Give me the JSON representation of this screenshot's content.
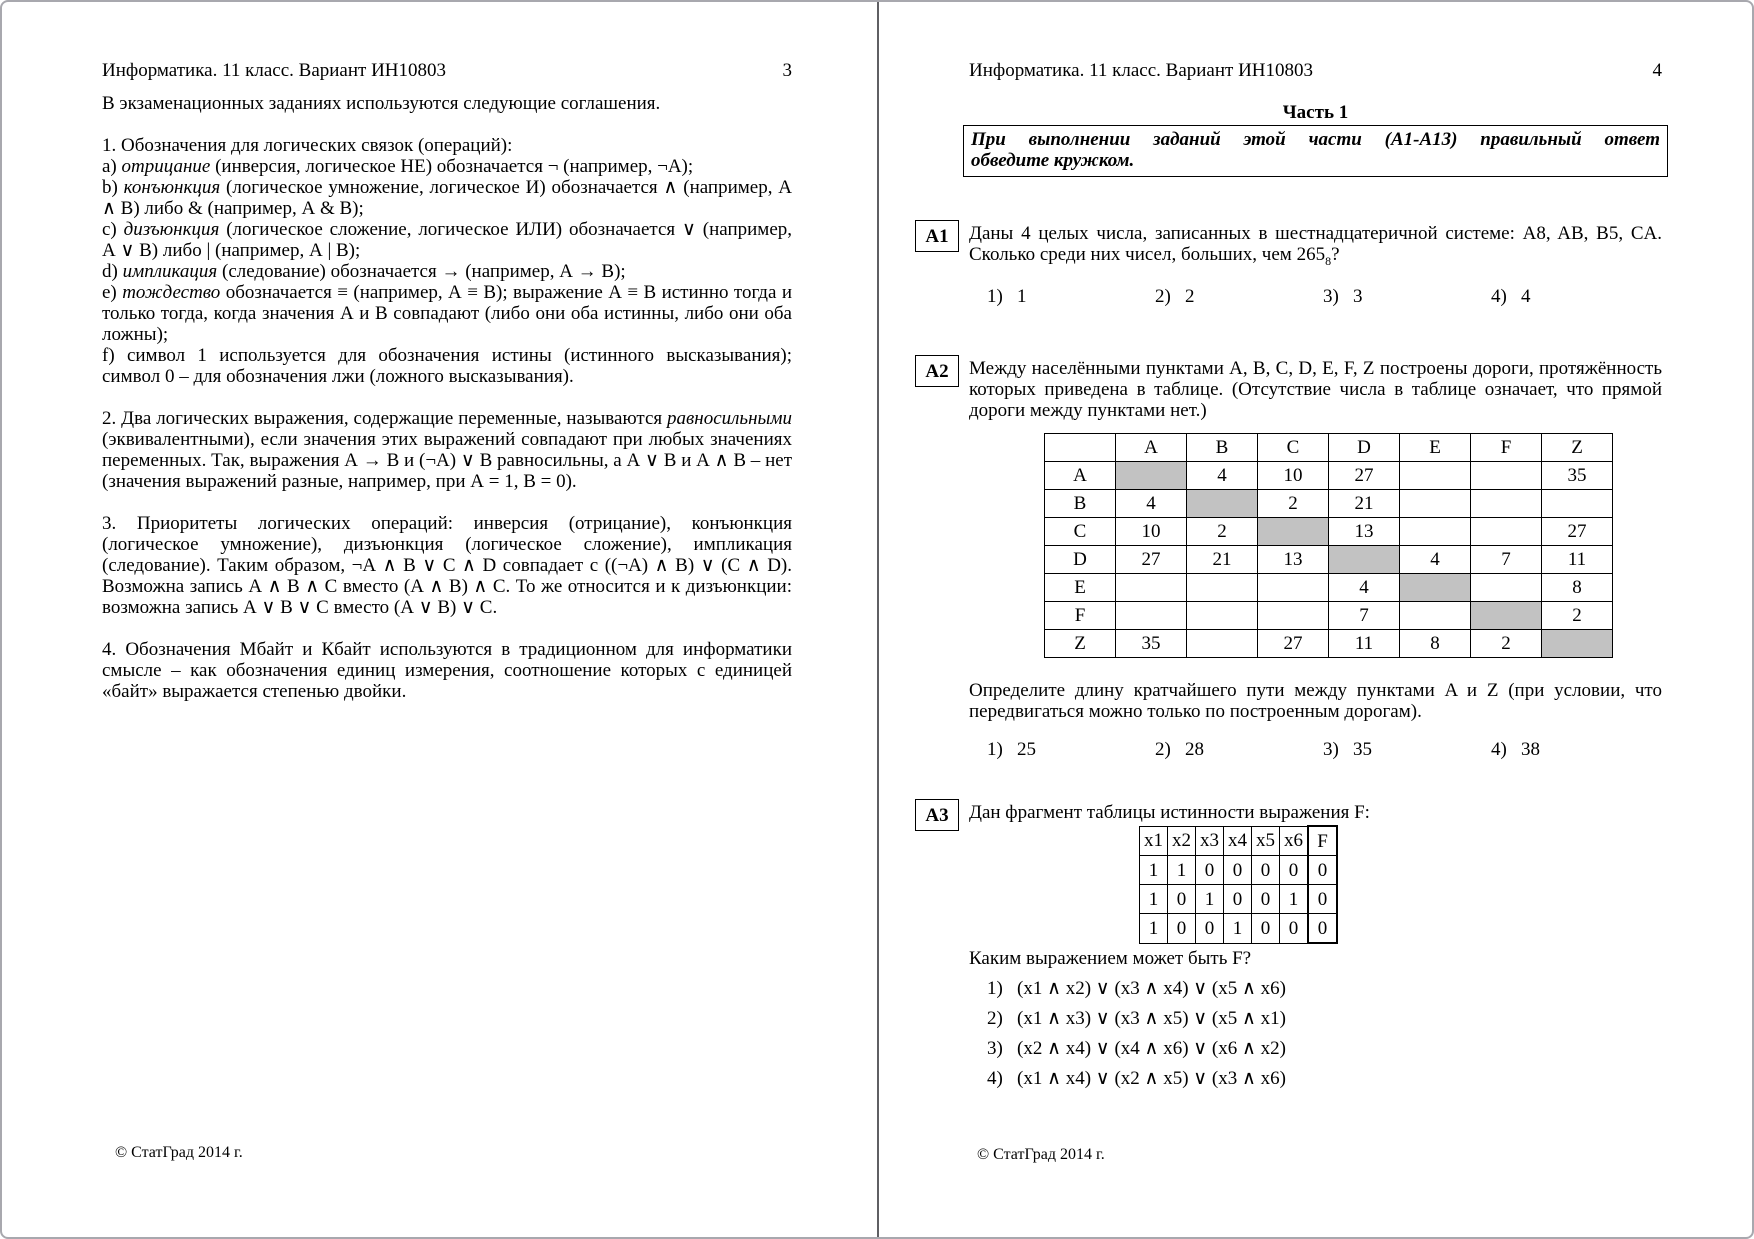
{
  "colors": {
    "shade_gray": "#c2c2c2",
    "divider_gray": "#5f5f63",
    "frame_gray": "#a8a8ae"
  },
  "page_left": {
    "header": "Информатика. 11 класс. Вариант ИН10803",
    "page_number": "3",
    "intro": "В экзаменационных заданиях используются следующие соглашения.",
    "section1_title": "1. Обозначения для логических связок (операций):",
    "conventions": [
      {
        "m": "а) ",
        "term": "отрицание",
        "rest": " (инверсия, логическое НЕ) обозначается ¬ (например, ¬А);"
      },
      {
        "m": "b) ",
        "term": "конъюнкция",
        "rest": " (логическое умножение, логическое И) обозначается ∧ (например, А ∧ В) либо & (например, А & В);"
      },
      {
        "m": "c) ",
        "term": "дизъюнкция",
        "rest": " (логическое сложение, логическое ИЛИ) обозначается ∨ (например, А ∨ В) либо | (например, А | В);"
      },
      {
        "m": "d) ",
        "term": "импликация",
        "rest": " (следование) обозначается → (например, А → В);"
      },
      {
        "m": "е) ",
        "term": "тождество",
        "rest": " обозначается ≡ (например, А ≡ В); выражение А ≡ В истинно тогда и только тогда, когда значения А и В совпадают (либо они оба истинны, либо они оба ложны);"
      },
      {
        "m": "f) ",
        "term": "",
        "rest": "символ 1 используется для обозначения истины (истинного высказывания); символ 0 – для обозначения лжи (ложного высказывания)."
      }
    ],
    "para2": {
      "before": "2. Два логических выражения, содержащие переменные, называются ",
      "italic": "равносильными",
      "after": " (эквивалентными), если значения этих выражений совпадают при любых значениях переменных. Так, выражения А → В и (¬А) ∨ В равносильны, а А ∨ В и А ∧ В – нет (значения выражений разные, например, при А = 1, В = 0)."
    },
    "para3": "3. Приоритеты логических операций: инверсия (отрицание), конъюнкция (логическое умножение), дизъюнкция (логическое сложение), импликация (следование). Таким образом, ¬А ∧ В ∨ С ∧ D совпадает с ((¬А) ∧ В) ∨ (С ∧ D). Возможна запись А ∧ В ∧ С вместо (А ∧ В) ∧ С. То же относится и к дизъюнкции: возможна запись А ∨ В ∨ С вместо (А ∨ В) ∨ С.",
    "para4": "4. Обозначения Мбайт и Кбайт используются в традиционном для информатики смысле – как обозначения единиц измерения, соотношение которых с единицей «байт» выражается степенью двойки.",
    "footer": "© СтатГрад 2014 г."
  },
  "page_right": {
    "header": "Информатика. 11 класс. Вариант ИН10803",
    "page_number": "4",
    "part_title": "Часть 1",
    "instruction_line1": "При выполнении заданий этой части (А1-А13) правильный ответ",
    "instruction_line2": "обведите кружком.",
    "a1": {
      "label": "А1",
      "text_before": "Даны 4 целых числа, записанных в шестнадцатеричной системе: A8, AB, B5, CA. Сколько среди них чисел, больших, чем 265",
      "sub": "8",
      "text_after": "?",
      "options": [
        {
          "m": "1)",
          "v": "1"
        },
        {
          "m": "2)",
          "v": "2"
        },
        {
          "m": "3)",
          "v": "3"
        },
        {
          "m": "4)",
          "v": "4"
        }
      ]
    },
    "a2": {
      "label": "А2",
      "intro": "Между населёнными пунктами A, B, C, D, E, F, Z построены дороги, протяжённость которых приведена в таблице. (Отсутствие числа в таблице означает, что прямой дороги между пунктами нет.)",
      "table": {
        "header": [
          "",
          "A",
          "B",
          "C",
          "D",
          "E",
          "F",
          "Z"
        ],
        "rows": [
          [
            "A",
            null,
            "4",
            "10",
            "27",
            "",
            "",
            "35"
          ],
          [
            "B",
            "4",
            null,
            "2",
            "21",
            "",
            "",
            ""
          ],
          [
            "C",
            "10",
            "2",
            null,
            "13",
            "",
            "",
            "27"
          ],
          [
            "D",
            "27",
            "21",
            "13",
            null,
            "4",
            "7",
            "11"
          ],
          [
            "E",
            "",
            "",
            "",
            "4",
            null,
            "",
            "8"
          ],
          [
            "F",
            "",
            "",
            "",
            "7",
            "",
            null,
            "2"
          ],
          [
            "Z",
            "35",
            "",
            "27",
            "11",
            "8",
            "2",
            null
          ]
        ]
      },
      "outro": "Определите длину кратчайшего пути между пунктами A и Z (при условии, что передвигаться можно только по построенным дорогам).",
      "options": [
        {
          "m": "1)",
          "v": "25"
        },
        {
          "m": "2)",
          "v": "28"
        },
        {
          "m": "3)",
          "v": "35"
        },
        {
          "m": "4)",
          "v": "38"
        }
      ]
    },
    "a3": {
      "label": "А3",
      "intro": "Дан фрагмент таблицы истинности выражения F:",
      "table": {
        "header": [
          "x1",
          "x2",
          "x3",
          "x4",
          "x5",
          "x6",
          "F"
        ],
        "rows": [
          [
            "1",
            "1",
            "0",
            "0",
            "0",
            "0",
            "0"
          ],
          [
            "1",
            "0",
            "1",
            "0",
            "0",
            "1",
            "0"
          ],
          [
            "1",
            "0",
            "0",
            "1",
            "0",
            "0",
            "0"
          ]
        ]
      },
      "question": "Каким выражением может быть F?",
      "options": [
        {
          "m": "1)",
          "v": "(x1 ∧ x2)  ∨ (x3 ∧ x4)  ∨  (x5 ∧ x6)"
        },
        {
          "m": "2)",
          "v": "(x1 ∧ x3)  ∨ (x3 ∧ x5)  ∨  (x5 ∧ x1)"
        },
        {
          "m": "3)",
          "v": "(x2 ∧ x4)  ∨ (x4 ∧ x6)  ∨  (x6 ∧ x2)"
        },
        {
          "m": "4)",
          "v": "(x1 ∧ x4)  ∨ (x2 ∧ x5)  ∨  (x3 ∧ x6)"
        }
      ]
    },
    "footer": "© СтатГрад 2014 г."
  }
}
